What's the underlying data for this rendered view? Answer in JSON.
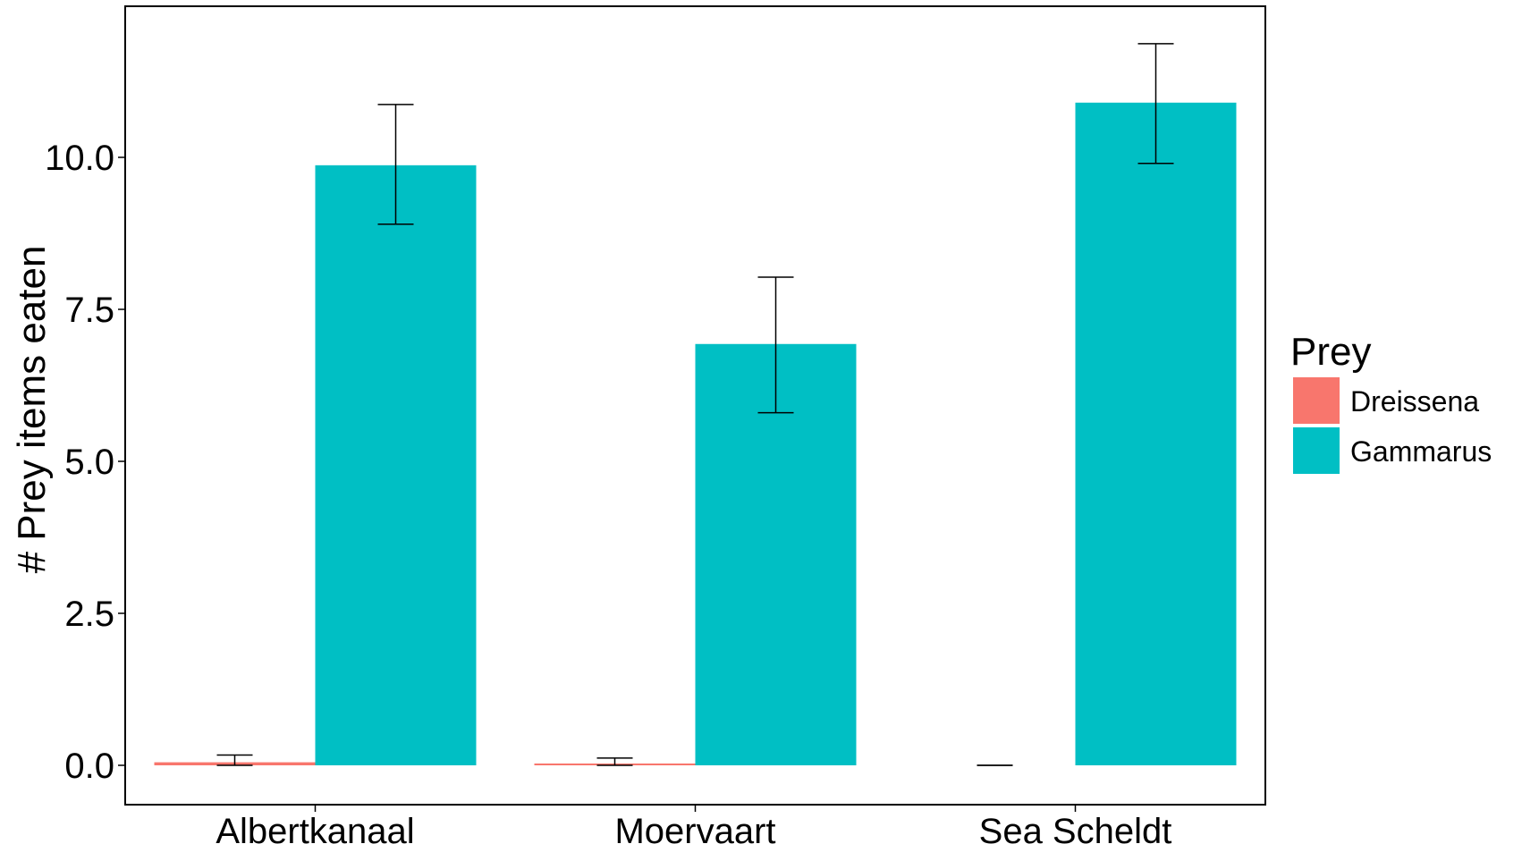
{
  "chart_data": {
    "type": "bar",
    "title": "",
    "xlabel": "",
    "ylabel": "# Prey items eaten",
    "categories": [
      "Albertkanaal",
      "Moervaart",
      "Sea Scheldt"
    ],
    "series": [
      {
        "name": "Dreissena",
        "color": "#F8766D",
        "values": [
          0.05,
          0.03,
          0.0
        ],
        "error_low": [
          0.0,
          0.0,
          0.0
        ],
        "error_high": [
          0.17,
          0.12,
          0.0
        ]
      },
      {
        "name": "Gammarus",
        "color": "#00BFC4",
        "values": [
          9.87,
          6.93,
          10.9
        ],
        "error_low": [
          8.9,
          5.8,
          9.9
        ],
        "error_high": [
          10.87,
          8.03,
          11.87
        ]
      }
    ],
    "ylim": [
      -0.6,
      12.5
    ],
    "yticks": [
      "0.0",
      "2.5",
      "5.0",
      "7.5",
      "10.0"
    ],
    "grid": false,
    "legend": {
      "title": "Prey",
      "placement": "right"
    }
  }
}
